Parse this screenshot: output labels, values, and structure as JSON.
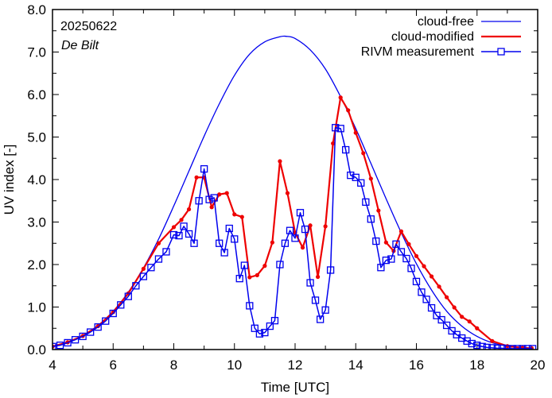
{
  "chart_data": {
    "type": "line",
    "title": "",
    "annotation_date": "20250622",
    "annotation_location": "De Bilt",
    "xlabel": "Time  [UTC]",
    "ylabel": "UV index  [-]",
    "xlim": [
      4,
      20
    ],
    "ylim": [
      0,
      8
    ],
    "grid": false,
    "x_ticks": [
      "4",
      "6",
      "8",
      "10",
      "12",
      "14",
      "16",
      "18",
      "20"
    ],
    "y_ticks": [
      "0.0",
      "1.0",
      "2.0",
      "3.0",
      "4.0",
      "5.0",
      "6.0",
      "7.0",
      "8.0"
    ],
    "legend_position": "top-right",
    "colors": {
      "cloud_free": "#0000ee",
      "cloud_modified": "#ee0000",
      "measurement": "#0000ee"
    },
    "series": [
      {
        "name": "cloud-free",
        "style": "line",
        "x": [
          4.0,
          4.5,
          5.0,
          5.5,
          6.0,
          6.5,
          7.0,
          7.5,
          8.0,
          8.5,
          9.0,
          9.5,
          10.0,
          10.5,
          11.0,
          11.5,
          11.7,
          12.0,
          12.5,
          13.0,
          13.5,
          14.0,
          14.5,
          15.0,
          15.5,
          16.0,
          16.5,
          17.0,
          17.5,
          18.0,
          18.5,
          19.0,
          19.5,
          19.8
        ],
        "y": [
          0.08,
          0.18,
          0.33,
          0.56,
          0.9,
          1.35,
          1.92,
          2.6,
          3.38,
          4.2,
          5.02,
          5.78,
          6.45,
          6.95,
          7.24,
          7.36,
          7.37,
          7.32,
          7.05,
          6.6,
          5.95,
          5.2,
          4.38,
          3.55,
          2.75,
          2.02,
          1.4,
          0.9,
          0.55,
          0.31,
          0.16,
          0.08,
          0.04,
          0.03
        ]
      },
      {
        "name": "cloud-modified",
        "style": "line-dots",
        "x": [
          4.0,
          4.5,
          5.0,
          5.5,
          6.0,
          6.5,
          7.0,
          7.5,
          8.0,
          8.25,
          8.5,
          8.75,
          9.0,
          9.25,
          9.5,
          9.75,
          10.0,
          10.25,
          10.5,
          10.75,
          11.0,
          11.25,
          11.5,
          11.75,
          12.0,
          12.25,
          12.5,
          12.75,
          13.0,
          13.25,
          13.5,
          13.75,
          14.0,
          14.25,
          14.5,
          14.75,
          15.0,
          15.25,
          15.5,
          15.75,
          16.0,
          16.25,
          16.5,
          16.75,
          17.0,
          17.25,
          17.5,
          17.75,
          18.0,
          18.5,
          19.0,
          19.5,
          19.8
        ],
        "y": [
          0.07,
          0.17,
          0.32,
          0.55,
          0.88,
          1.32,
          1.9,
          2.5,
          2.88,
          3.05,
          3.3,
          4.05,
          4.05,
          3.35,
          3.65,
          3.68,
          3.18,
          3.12,
          1.7,
          1.75,
          1.97,
          2.52,
          4.43,
          3.68,
          2.75,
          2.4,
          2.92,
          1.71,
          2.9,
          4.85,
          5.93,
          5.63,
          5.1,
          4.62,
          4.02,
          3.27,
          2.52,
          2.32,
          2.78,
          2.48,
          2.2,
          1.96,
          1.72,
          1.48,
          1.23,
          0.99,
          0.77,
          0.66,
          0.5,
          0.2,
          0.08,
          0.04,
          0.03
        ]
      },
      {
        "name": "RIVM measurement",
        "style": "line-squares",
        "x": [
          4.0,
          4.25,
          4.5,
          4.75,
          5.0,
          5.25,
          5.5,
          5.75,
          6.0,
          6.25,
          6.5,
          6.75,
          7.0,
          7.25,
          7.5,
          7.75,
          8.0,
          8.17,
          8.33,
          8.5,
          8.67,
          8.83,
          9.0,
          9.17,
          9.33,
          9.5,
          9.67,
          9.83,
          10.0,
          10.17,
          10.33,
          10.5,
          10.67,
          10.83,
          11.0,
          11.17,
          11.33,
          11.5,
          11.67,
          11.83,
          12.0,
          12.17,
          12.33,
          12.5,
          12.67,
          12.83,
          13.0,
          13.17,
          13.33,
          13.5,
          13.67,
          13.83,
          14.0,
          14.17,
          14.33,
          14.5,
          14.67,
          14.83,
          15.0,
          15.17,
          15.33,
          15.5,
          15.67,
          15.83,
          16.0,
          16.17,
          16.33,
          16.5,
          16.67,
          16.83,
          17.0,
          17.17,
          17.33,
          17.5,
          17.67,
          17.83,
          18.0,
          18.17,
          18.33,
          18.5,
          18.67,
          18.83,
          19.0,
          19.17,
          19.33,
          19.5,
          19.67,
          19.83
        ],
        "y": [
          0.07,
          0.1,
          0.16,
          0.23,
          0.31,
          0.41,
          0.53,
          0.67,
          0.85,
          1.05,
          1.25,
          1.5,
          1.72,
          1.93,
          2.13,
          2.3,
          2.7,
          2.68,
          2.9,
          2.72,
          2.5,
          3.5,
          4.25,
          3.53,
          3.57,
          2.5,
          2.28,
          2.85,
          2.6,
          1.67,
          1.98,
          1.03,
          0.5,
          0.37,
          0.4,
          0.55,
          0.68,
          2.0,
          2.5,
          2.8,
          2.62,
          3.22,
          2.83,
          1.57,
          1.16,
          0.71,
          0.93,
          1.87,
          5.22,
          5.2,
          4.7,
          4.1,
          4.05,
          3.92,
          3.47,
          3.07,
          2.55,
          1.93,
          2.1,
          2.13,
          2.48,
          2.3,
          2.14,
          1.91,
          1.6,
          1.35,
          1.18,
          0.98,
          0.8,
          0.7,
          0.57,
          0.44,
          0.35,
          0.27,
          0.2,
          0.14,
          0.1,
          0.07,
          0.05,
          0.04,
          0.03,
          0.03,
          0.02,
          0.02,
          0.02,
          0.02,
          0.02,
          0.02
        ]
      }
    ]
  }
}
